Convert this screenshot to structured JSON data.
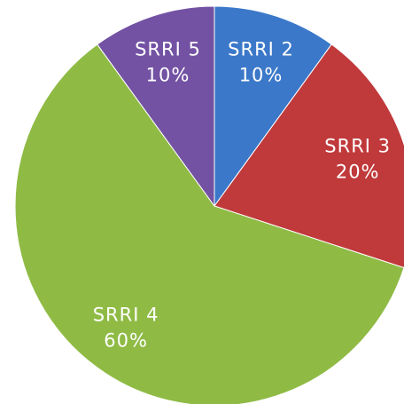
{
  "chart_data": {
    "type": "pie",
    "categories": [
      "SRRI 2",
      "SRRI 3",
      "SRRI 4",
      "SRRI 5"
    ],
    "values": [
      10,
      20,
      60,
      10
    ],
    "value_labels": [
      "10%",
      "20%",
      "60%",
      "10%"
    ],
    "colors": [
      "#3b78c9",
      "#c0393b",
      "#8fbb45",
      "#7352a3"
    ]
  }
}
